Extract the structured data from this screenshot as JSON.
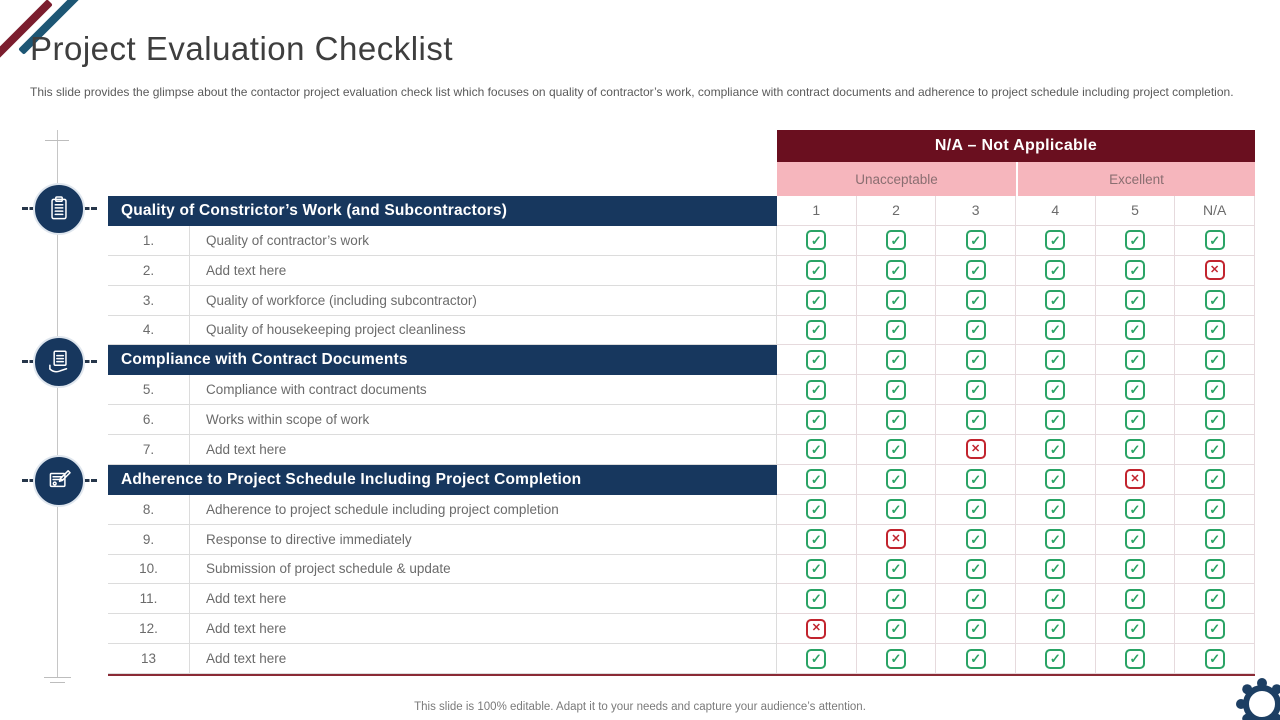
{
  "slide": {
    "title": "Project Evaluation Checklist",
    "subtitle": "This slide provides the glimpse about the contactor project evaluation check list which focuses on quality of contractor’s work, compliance with contract documents and adherence to project schedule including project completion.",
    "footer": "This slide is 100% editable. Adapt it to your needs and capture your audience’s attention."
  },
  "colors": {
    "header_maroon": "#6a0f1f",
    "section_navy": "#17375e",
    "subheader_pink": "#f6b6bd",
    "check_green": "#2aa365",
    "cross_red": "#c2242e",
    "stripe_blue": "#1d5674",
    "stripe_maroon": "#7b1d2e"
  },
  "icons": {
    "left_rail": [
      "clipboard-icon",
      "hand-document-icon",
      "document-pencil-icon"
    ],
    "corner": "gear-icon"
  },
  "table": {
    "header": "N/A – Not Applicable",
    "subheaders": [
      "Unacceptable",
      "Excellent"
    ],
    "symbols": {
      "check": "✓",
      "cross": "✕"
    },
    "rows": [
      {
        "kind": "section",
        "label": "Quality of Constrictor’s Work (and Subcontractors)",
        "cells": [
          "1",
          "2",
          "3",
          "4",
          "5",
          "N/A"
        ]
      },
      {
        "kind": "item",
        "num": "1.",
        "label": "Quality of contractor’s work",
        "cells": [
          "check",
          "check",
          "check",
          "check",
          "check",
          "check"
        ]
      },
      {
        "kind": "item",
        "num": "2.",
        "label": "Add text here",
        "cells": [
          "check",
          "check",
          "check",
          "check",
          "check",
          "cross"
        ]
      },
      {
        "kind": "item",
        "num": "3.",
        "label": "Quality of workforce (including subcontractor)",
        "cells": [
          "check",
          "check",
          "check",
          "check",
          "check",
          "check"
        ]
      },
      {
        "kind": "item",
        "num": "4.",
        "label": "Quality of housekeeping project cleanliness",
        "cells": [
          "check",
          "check",
          "check",
          "check",
          "check",
          "check"
        ]
      },
      {
        "kind": "section",
        "label": "Compliance with Contract Documents",
        "cells": [
          "check",
          "check",
          "check",
          "check",
          "check",
          "check"
        ]
      },
      {
        "kind": "item",
        "num": "5.",
        "label": "Compliance with contract documents",
        "cells": [
          "check",
          "check",
          "check",
          "check",
          "check",
          "check"
        ]
      },
      {
        "kind": "item",
        "num": "6.",
        "label": "Works within scope of work",
        "cells": [
          "check",
          "check",
          "check",
          "check",
          "check",
          "check"
        ]
      },
      {
        "kind": "item",
        "num": "7.",
        "label": "Add text here",
        "cells": [
          "check",
          "check",
          "cross",
          "check",
          "check",
          "check"
        ]
      },
      {
        "kind": "section",
        "label": "Adherence to Project Schedule Including Project Completion",
        "cells": [
          "check",
          "check",
          "check",
          "check",
          "cross",
          "check"
        ]
      },
      {
        "kind": "item",
        "num": "8.",
        "label": "Adherence to project schedule including project completion",
        "cells": [
          "check",
          "check",
          "check",
          "check",
          "check",
          "check"
        ]
      },
      {
        "kind": "item",
        "num": "9.",
        "label": "Response to directive immediately",
        "cells": [
          "check",
          "cross",
          "check",
          "check",
          "check",
          "check"
        ]
      },
      {
        "kind": "item",
        "num": "10.",
        "label": "Submission of project schedule & update",
        "cells": [
          "check",
          "check",
          "check",
          "check",
          "check",
          "check"
        ]
      },
      {
        "kind": "item",
        "num": "11.",
        "label": "Add text here",
        "cells": [
          "check",
          "check",
          "check",
          "check",
          "check",
          "check"
        ]
      },
      {
        "kind": "item",
        "num": "12.",
        "label": "Add text here",
        "cells": [
          "cross",
          "check",
          "check",
          "check",
          "check",
          "check"
        ]
      },
      {
        "kind": "item",
        "num": "13",
        "label": "Add text here",
        "cells": [
          "check",
          "check",
          "check",
          "check",
          "check",
          "check"
        ]
      }
    ]
  }
}
